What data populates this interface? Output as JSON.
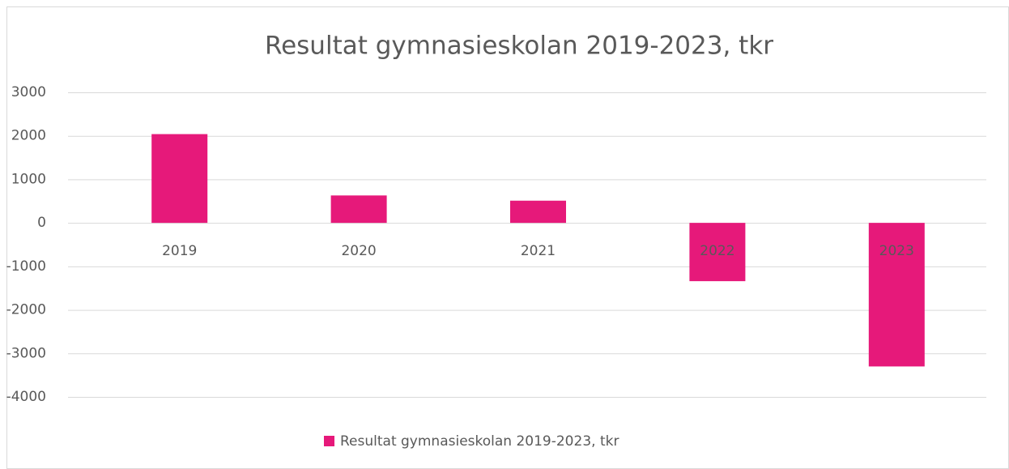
{
  "chart_data": {
    "type": "bar",
    "title": "Resultat gymnasieskolan 2019-2023, tkr",
    "categories": [
      "2019",
      "2020",
      "2021",
      "2022",
      "2023"
    ],
    "series": [
      {
        "name": "Resultat gymnasieskolan 2019-2023, tkr",
        "color": "#e6197a",
        "values": [
          2040,
          630,
          510,
          -1340,
          -3300
        ]
      }
    ],
    "ylim": [
      -4000,
      3000
    ],
    "yticks": [
      -4000,
      -3000,
      -2000,
      -1000,
      0,
      1000,
      2000,
      3000
    ],
    "grid": true,
    "legend": "bottom"
  }
}
